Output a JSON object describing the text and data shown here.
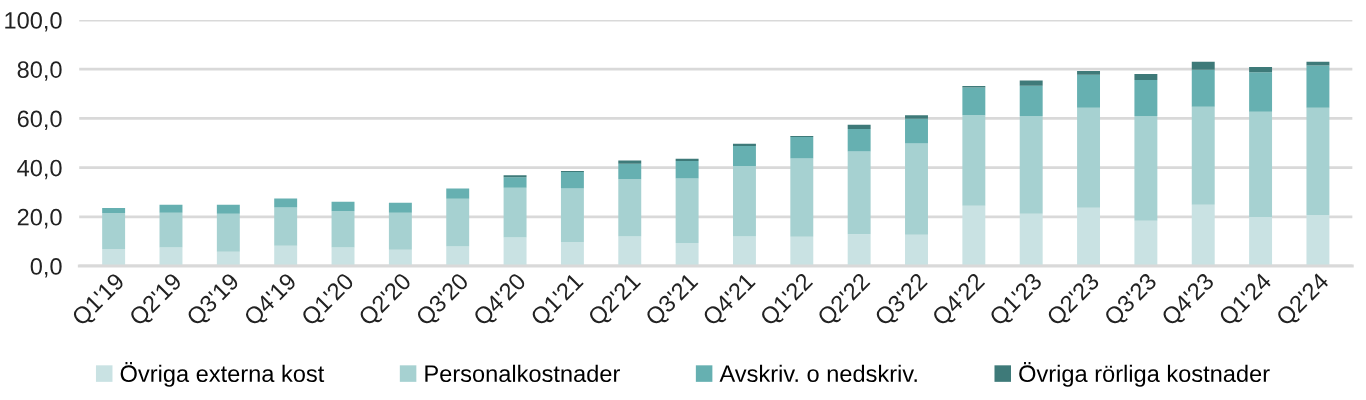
{
  "chart_data": {
    "type": "bar",
    "stacked": true,
    "categories": [
      "Q1'19",
      "Q2'19",
      "Q3'19",
      "Q4'19",
      "Q1'20",
      "Q2'20",
      "Q3'20",
      "Q4'20",
      "Q1'21",
      "Q2'21",
      "Q3'21",
      "Q4'21",
      "Q1'22",
      "Q2'22",
      "Q3'22",
      "Q4'22",
      "Q1'23",
      "Q2'23",
      "Q3'23",
      "Q4'23",
      "Q1'24",
      "Q2'24"
    ],
    "series": [
      {
        "name": "Övriga externa kost",
        "color": "#c9e2e3",
        "values": [
          6.9,
          7.5,
          5.8,
          8.2,
          7.5,
          6.6,
          7.9,
          11.6,
          9.8,
          12.0,
          9.3,
          12.0,
          11.9,
          12.9,
          12.7,
          24.5,
          21.2,
          23.7,
          18.4,
          24.9,
          19.9,
          20.7
        ]
      },
      {
        "name": "Personalkostnader",
        "color": "#a6d1d1",
        "values": [
          14.5,
          14.1,
          15.4,
          15.6,
          14.8,
          15.0,
          19.4,
          20.2,
          21.7,
          23.3,
          26.3,
          28.7,
          31.8,
          33.6,
          37.1,
          36.8,
          39.8,
          40.6,
          42.6,
          39.8,
          42.8,
          43.6
        ]
      },
      {
        "name": "Avskriv. o nedskriv.",
        "color": "#66b0b1",
        "values": [
          2.2,
          3.3,
          3.7,
          3.6,
          3.8,
          4.1,
          4.2,
          4.3,
          6.7,
          6.3,
          7.1,
          8.1,
          8.7,
          9.2,
          10.1,
          11.3,
          12.3,
          13.4,
          14.6,
          15.1,
          16.1,
          17.2
        ]
      },
      {
        "name": "Övriga rörliga kostnader",
        "color": "#3e7a79",
        "values": [
          0,
          0,
          0,
          0,
          0,
          0,
          0,
          0.8,
          0.4,
          1.3,
          0.9,
          0.9,
          0.4,
          1.7,
          1.4,
          0.6,
          2.1,
          1.6,
          2.4,
          3.2,
          2.1,
          1.5
        ]
      }
    ],
    "ylim": [
      0,
      100
    ],
    "yticks": [
      {
        "value": 0,
        "label": "0,0"
      },
      {
        "value": 20,
        "label": "20,0"
      },
      {
        "value": 40,
        "label": "40,0"
      },
      {
        "value": 60,
        "label": "60,0"
      },
      {
        "value": 80,
        "label": "80,0"
      },
      {
        "value": 100,
        "label": "100,0"
      }
    ],
    "grid": "y",
    "legend": "bottom"
  }
}
